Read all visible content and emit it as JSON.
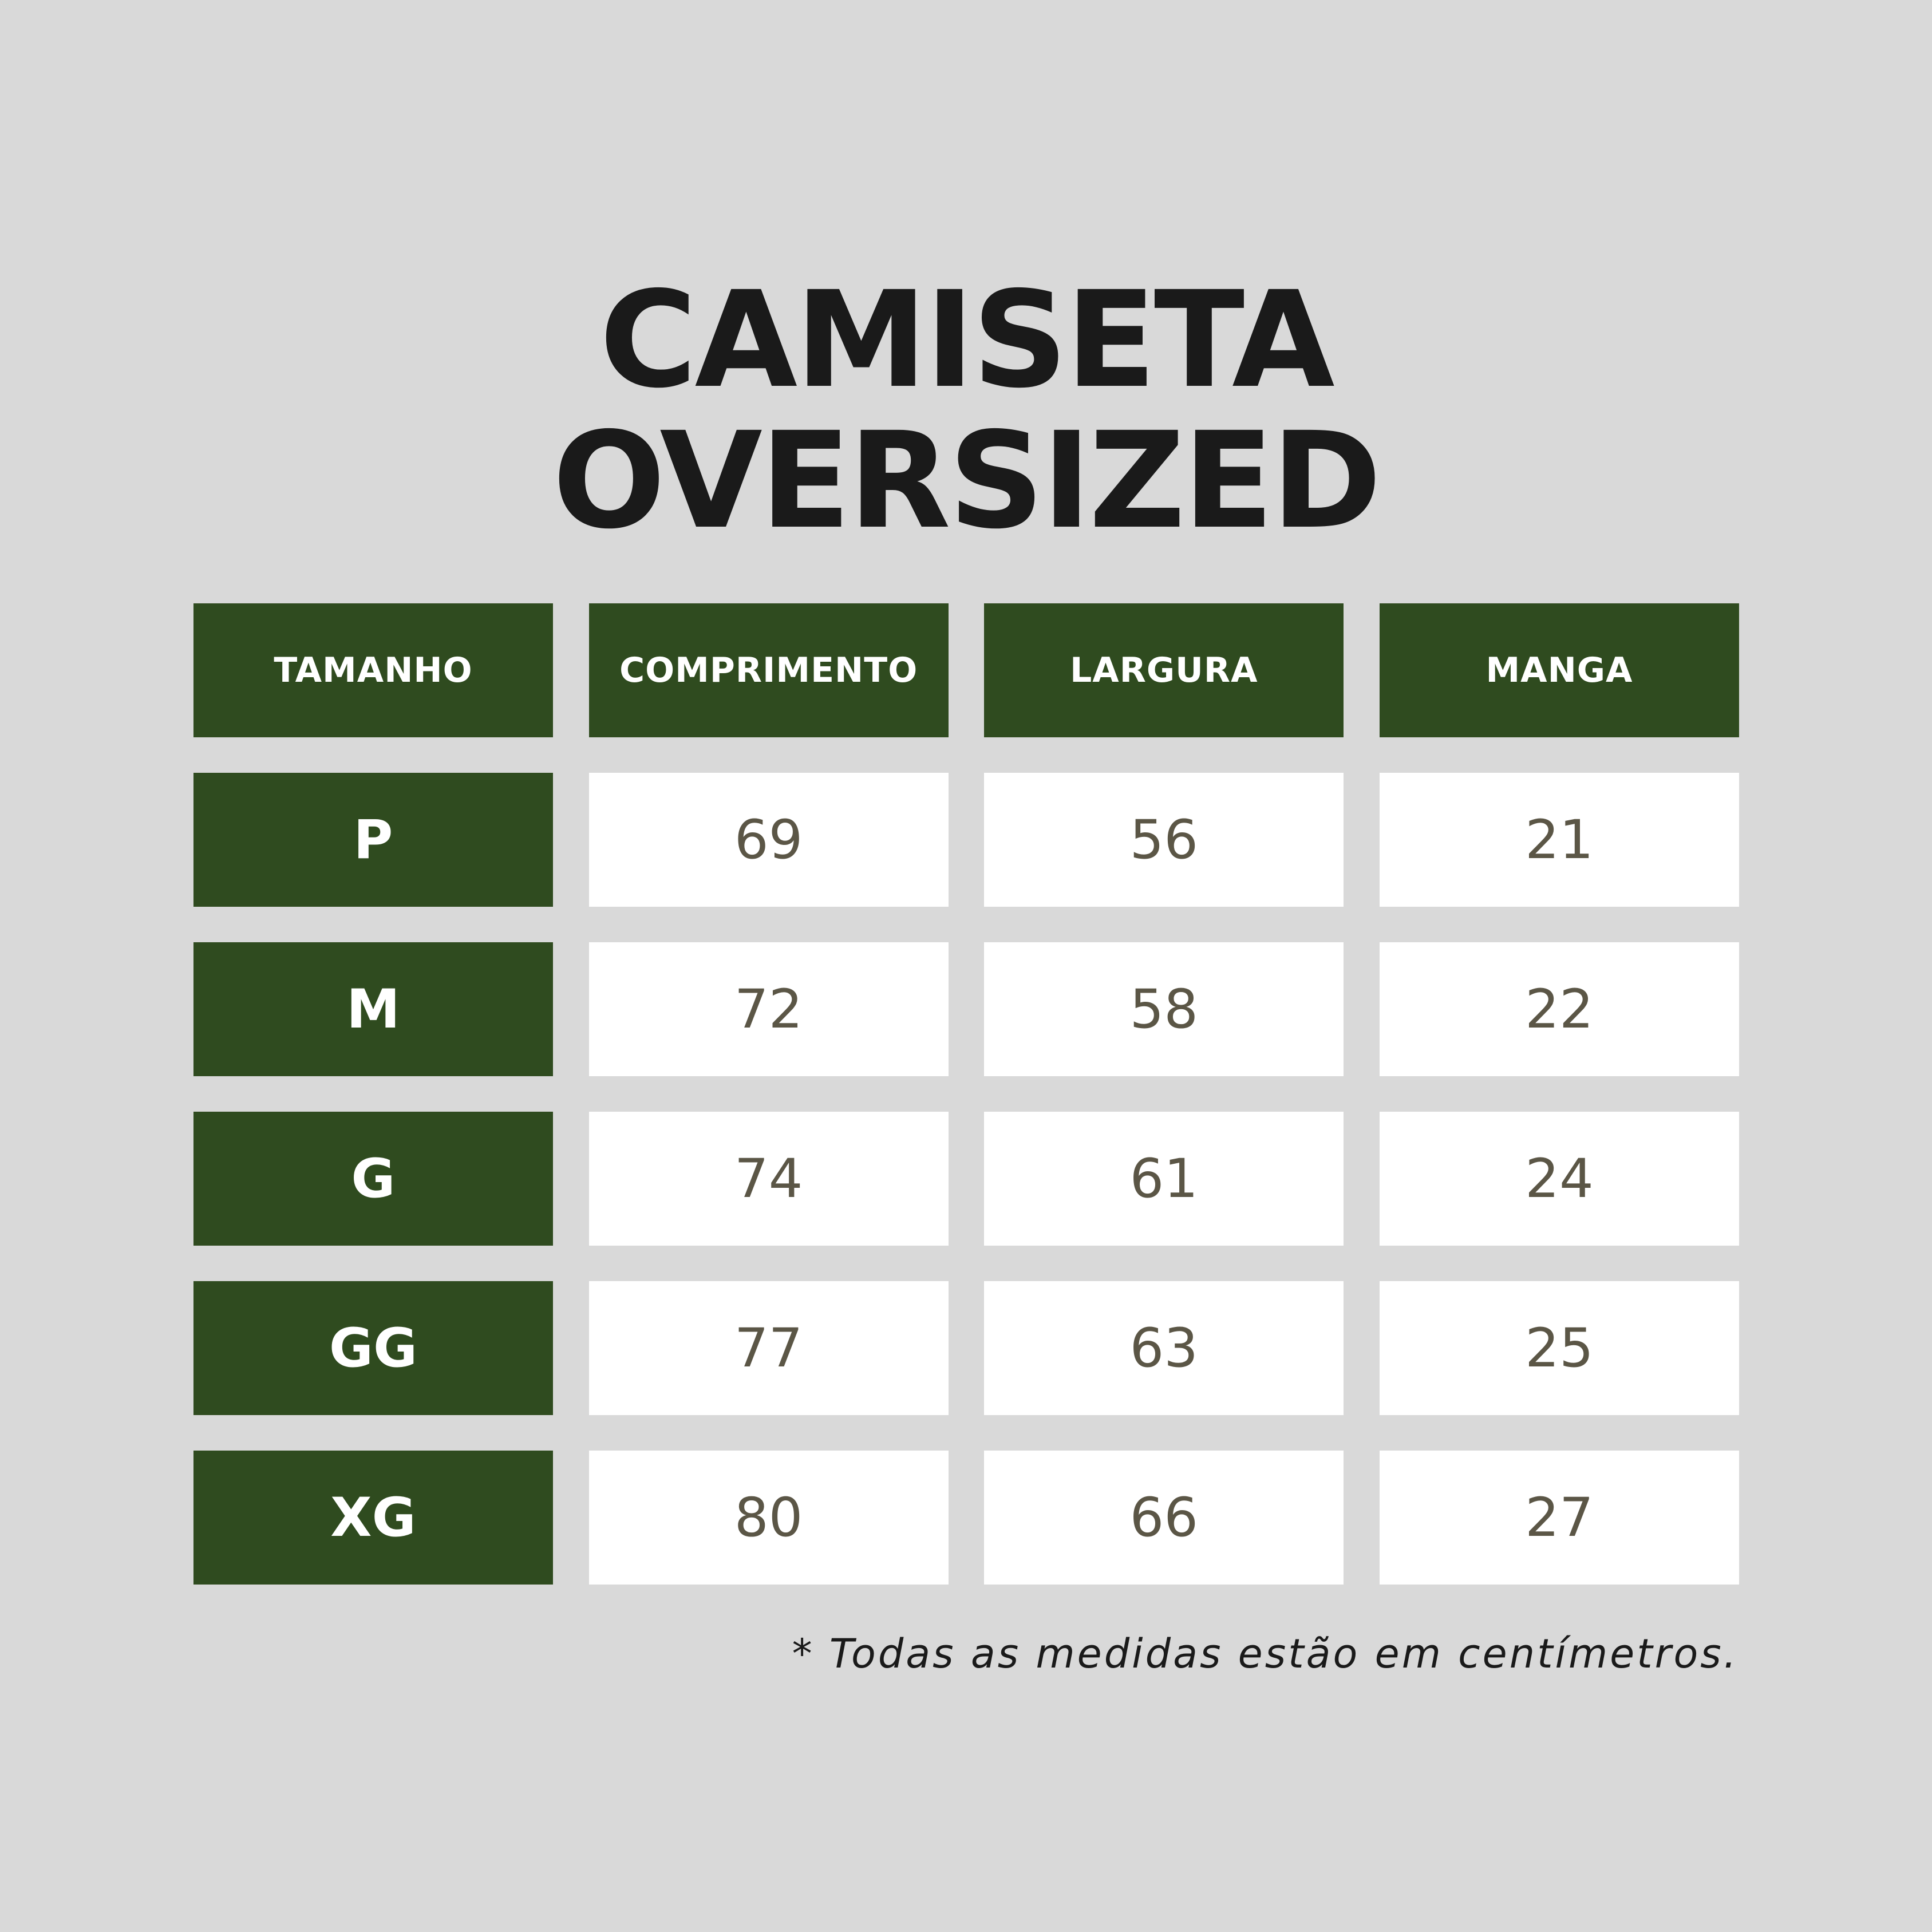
{
  "title": {
    "line1": "CAMISETA",
    "line2": "OVERSIZED"
  },
  "table": {
    "headers": [
      "TAMANHO",
      "COMPRIMENTO",
      "LARGURA",
      "MANGA"
    ],
    "rows": [
      {
        "size": "P",
        "comprimento": "69",
        "largura": "56",
        "manga": "21"
      },
      {
        "size": "M",
        "comprimento": "72",
        "largura": "58",
        "manga": "22"
      },
      {
        "size": "G",
        "comprimento": "74",
        "largura": "61",
        "manga": "24"
      },
      {
        "size": "GG",
        "comprimento": "77",
        "largura": "63",
        "manga": "25"
      },
      {
        "size": "XG",
        "comprimento": "80",
        "largura": "66",
        "manga": "27"
      }
    ]
  },
  "footnote": "* Todas as medidas estão em centímetros.",
  "colors": {
    "background": "#d9d9d9",
    "header_green": "#2f4b1f",
    "cell_white": "#ffffff",
    "value_text": "#5b5646",
    "title_text": "#1a1a1a"
  }
}
